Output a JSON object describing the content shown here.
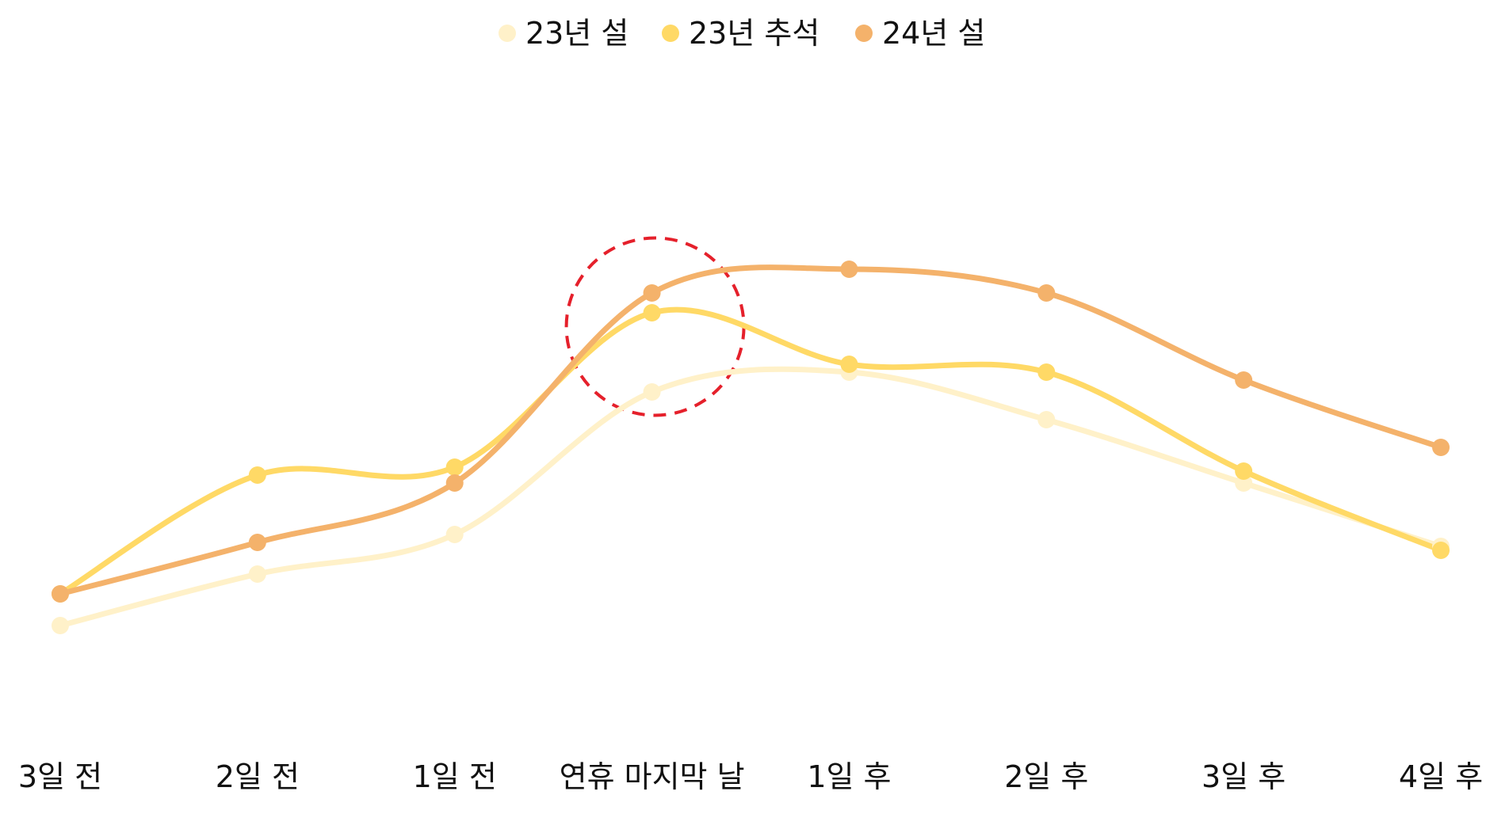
{
  "chart_data": {
    "type": "line",
    "categories": [
      "3일 전",
      "2일 전",
      "1일 전",
      "연휴 마지막 날",
      "1일 후",
      "2일 후",
      "3일 후",
      "4일 후"
    ],
    "series": [
      {
        "name": "23년 설",
        "color": "#FFF1C9",
        "values": [
          25,
          31.5,
          36.5,
          54.5,
          57,
          51,
          43,
          35
        ]
      },
      {
        "name": "23년 추석",
        "color": "#FFD966",
        "values": [
          29,
          44,
          45,
          64.5,
          58,
          57,
          44.5,
          34.5
        ]
      },
      {
        "name": "24년 설",
        "color": "#F4B26B",
        "values": [
          29,
          35.5,
          43,
          67,
          70,
          67,
          56,
          47.5
        ]
      }
    ],
    "ylim": [
      0,
      100
    ],
    "grid": false,
    "legend_position": "top-center",
    "highlight": {
      "category": "연휴 마지막 날",
      "color": "#E5202B",
      "style": "dashed-circle"
    }
  }
}
